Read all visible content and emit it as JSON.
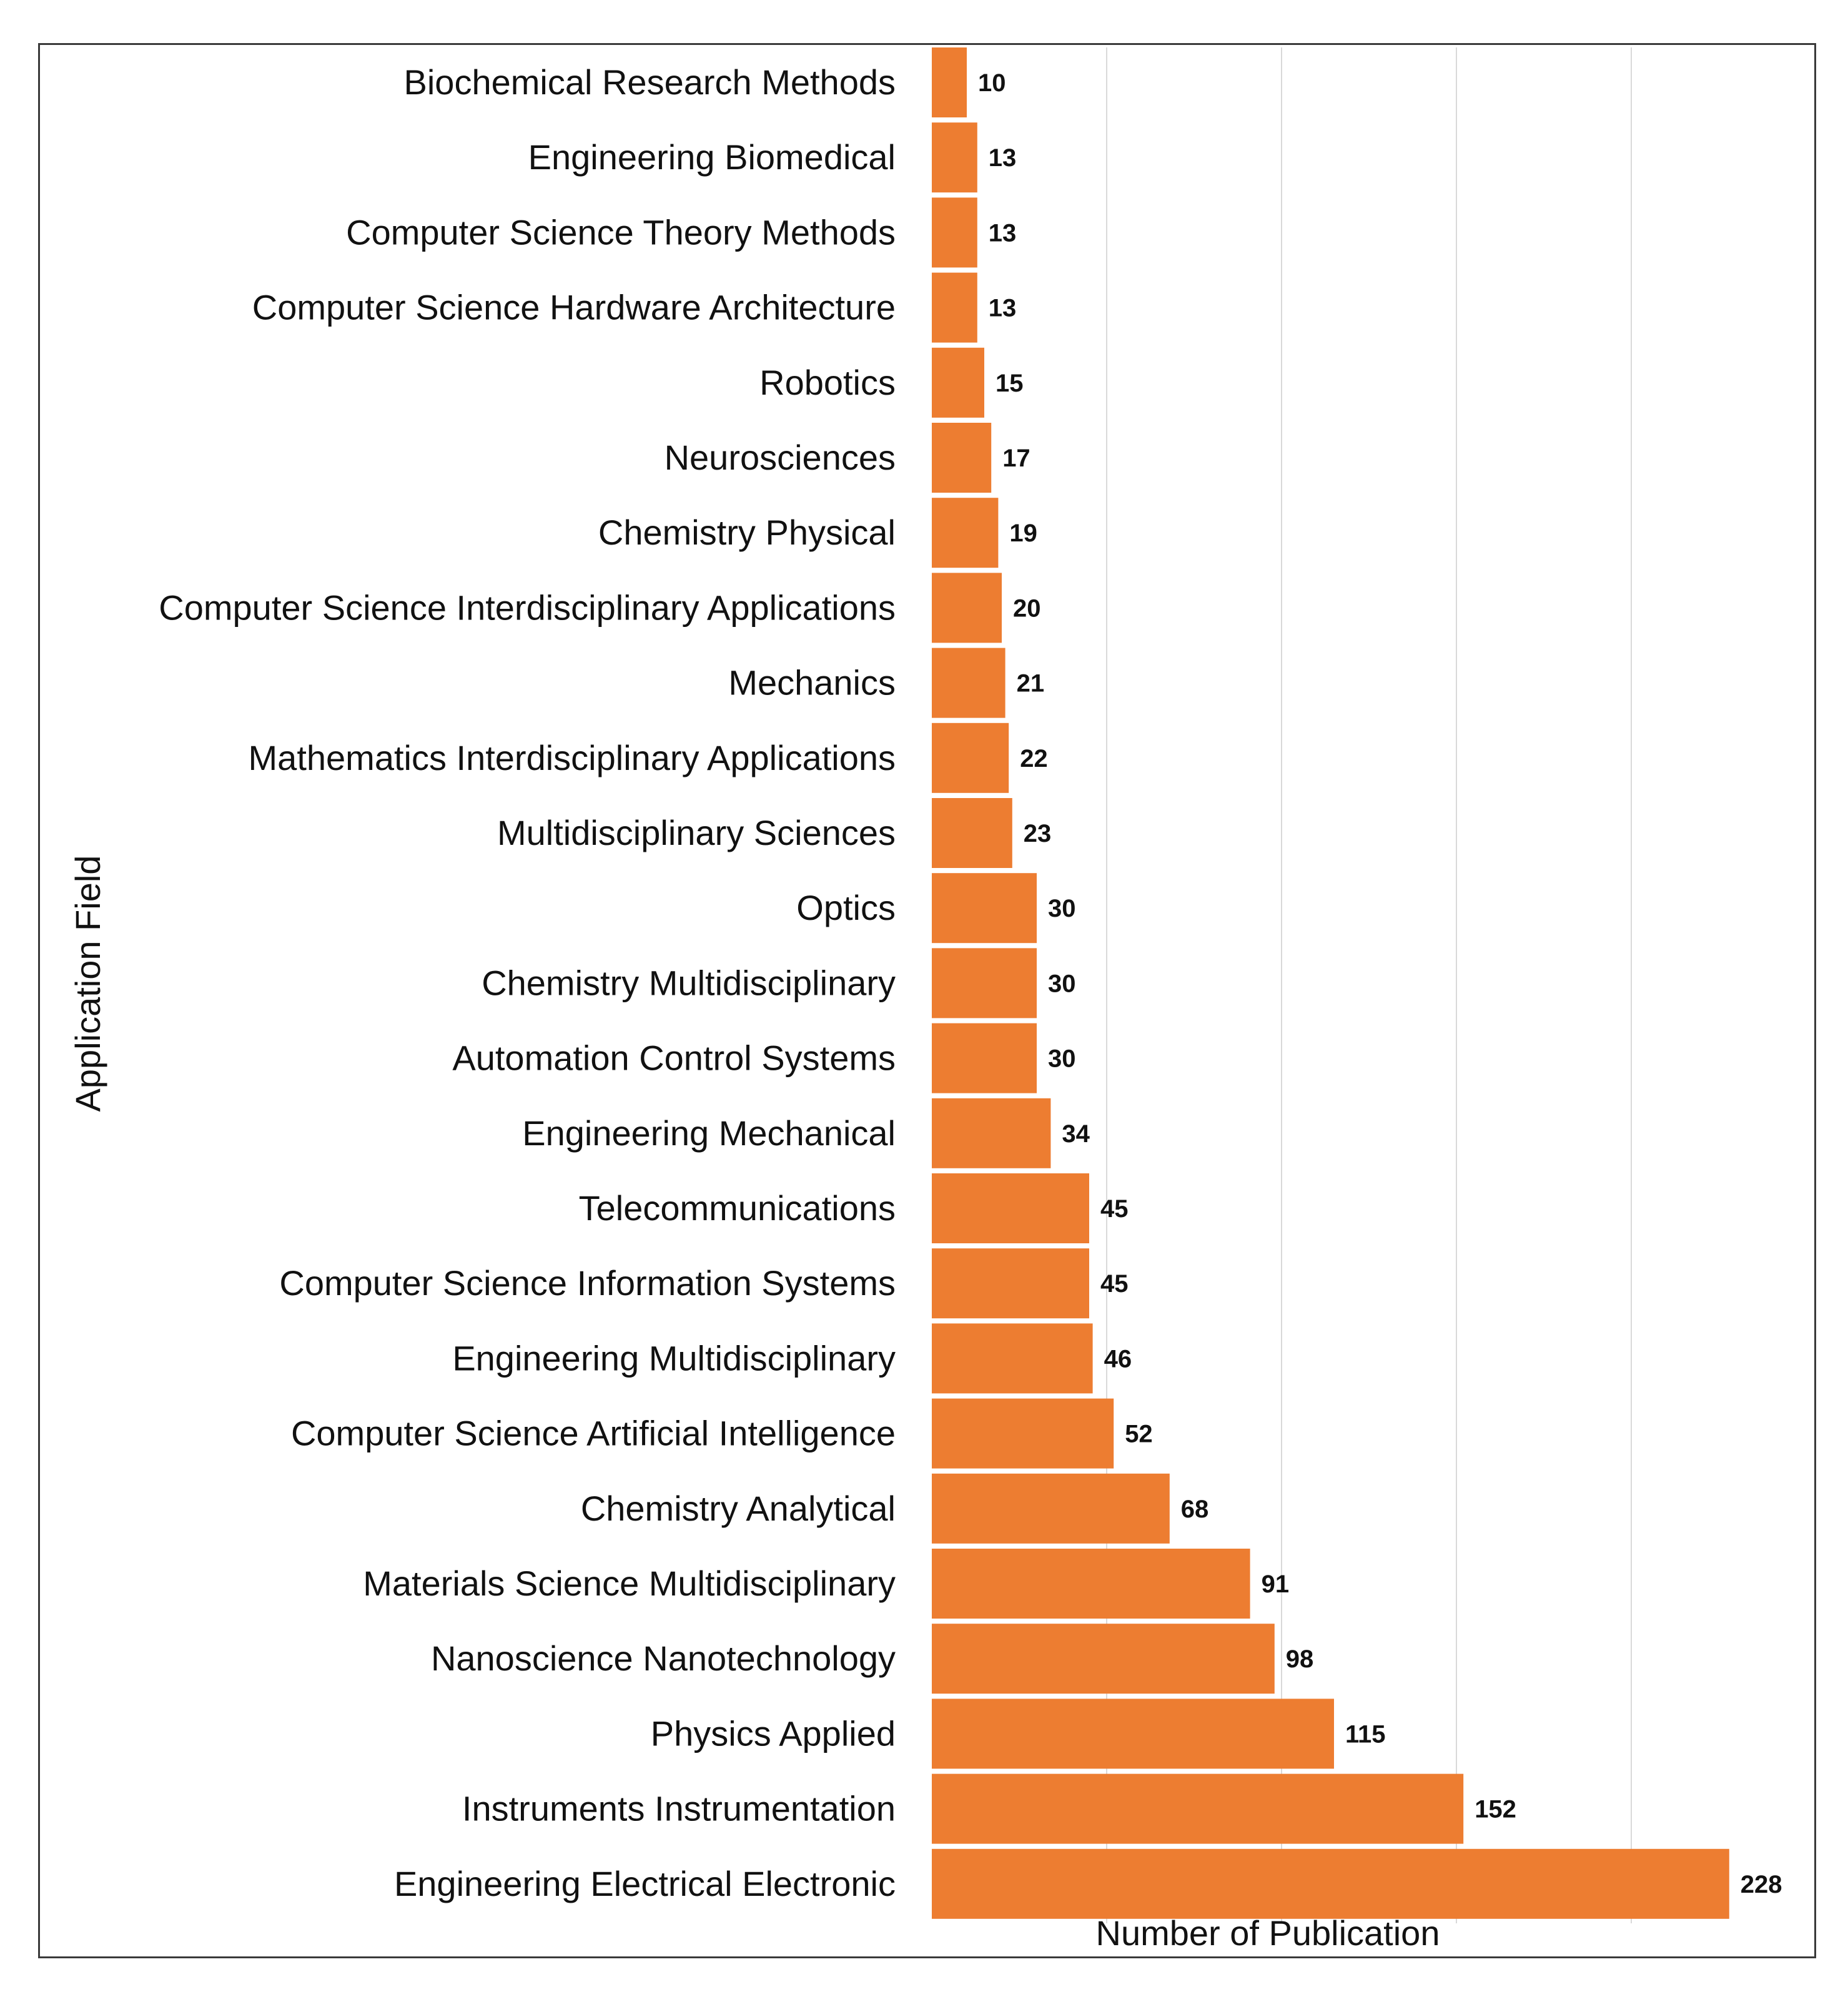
{
  "chart_data": {
    "type": "bar",
    "orientation": "horizontal",
    "title": "",
    "xlabel": "Number of Publication",
    "ylabel": "Application Field",
    "xlim": [
      0,
      230
    ],
    "grid": true,
    "bar_color": "#ED7D31",
    "categories": [
      "Biochemical Research Methods",
      "Engineering Biomedical",
      "Computer Science Theory Methods",
      "Computer Science Hardware Architecture",
      "Robotics",
      "Neurosciences",
      "Chemistry Physical",
      "Computer Science Interdisciplinary Applications",
      "Mechanics",
      "Mathematics Interdisciplinary Applications",
      "Multidisciplinary Sciences",
      "Optics",
      "Chemistry Multidisciplinary",
      "Automation Control Systems",
      "Engineering Mechanical",
      "Telecommunications",
      "Computer Science Information Systems",
      "Engineering Multidisciplinary",
      "Computer Science Artificial Intelligence",
      "Chemistry Analytical",
      "Materials Science Multidisciplinary",
      "Nanoscience Nanotechnology",
      "Physics Applied",
      "Instruments Instrumentation",
      "Engineering Electrical Electronic"
    ],
    "values": [
      10,
      13,
      13,
      13,
      15,
      17,
      19,
      20,
      21,
      22,
      23,
      30,
      30,
      30,
      34,
      45,
      45,
      46,
      52,
      68,
      91,
      98,
      115,
      152,
      228
    ]
  }
}
